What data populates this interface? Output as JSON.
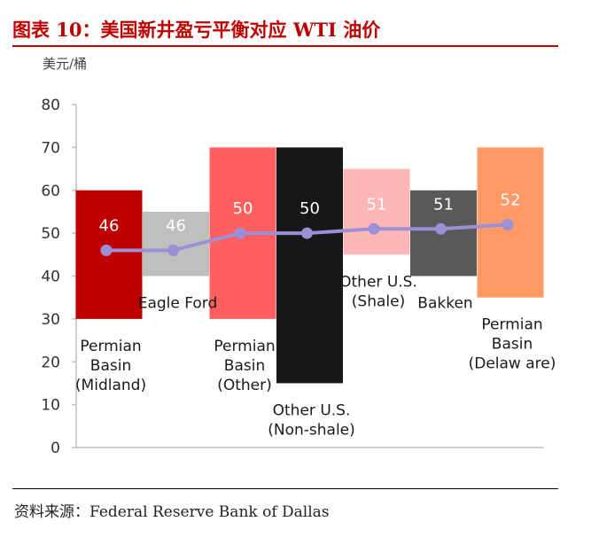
{
  "header": {
    "title": "图表 10：美国新井盈亏平衡对应 WTI 油价",
    "unit_label": "美元/桶"
  },
  "footer": {
    "source": "资料来源：Federal Reserve Bank of Dallas"
  },
  "colors": {
    "title": "#c00000",
    "line": "#9b8fd6",
    "axis": "#bfbfbf"
  },
  "chart_data": {
    "type": "bar+line",
    "ylabel": "美元/桶",
    "ylim": [
      0,
      80
    ],
    "yticks": [
      0,
      10,
      20,
      30,
      40,
      50,
      60,
      70,
      80
    ],
    "grid": false,
    "categories": [
      {
        "lines": [
          "Permian",
          "Basin",
          "(Midland)"
        ],
        "low": 30,
        "high": 60,
        "breakeven": 46,
        "label": "46",
        "color": "#c00000",
        "label_color": "#ffffff"
      },
      {
        "lines": [
          "Eagle Ford"
        ],
        "low": 40,
        "high": 55,
        "breakeven": 46,
        "label": "46",
        "color": "#bfbfbf",
        "label_color": "#ffffff"
      },
      {
        "lines": [
          "Permian",
          "Basin",
          "(Other)"
        ],
        "low": 30,
        "high": 70,
        "breakeven": 50,
        "label": "50",
        "color": "#ff5f5f",
        "label_color": "#ffffff"
      },
      {
        "lines": [
          "Other U.S.",
          "(Non-shale)"
        ],
        "low": 15,
        "high": 70,
        "breakeven": 50,
        "label": "50",
        "color": "#171717",
        "label_color": "#ffffff"
      },
      {
        "lines": [
          "Other U.S.",
          "(Shale)"
        ],
        "low": 45,
        "high": 65,
        "breakeven": 51,
        "label": "51",
        "color": "#ffb6b6",
        "label_color": "#ffffff"
      },
      {
        "lines": [
          "Bakken"
        ],
        "low": 40,
        "high": 60,
        "breakeven": 51,
        "label": "51",
        "color": "#595959",
        "label_color": "#ffffff"
      },
      {
        "lines": [
          "Permian",
          "Basin",
          "(Delaw are)"
        ],
        "low": 35,
        "high": 70,
        "breakeven": 52,
        "label": "52",
        "color": "#ff9966",
        "label_color": "#ffffff"
      }
    ]
  }
}
